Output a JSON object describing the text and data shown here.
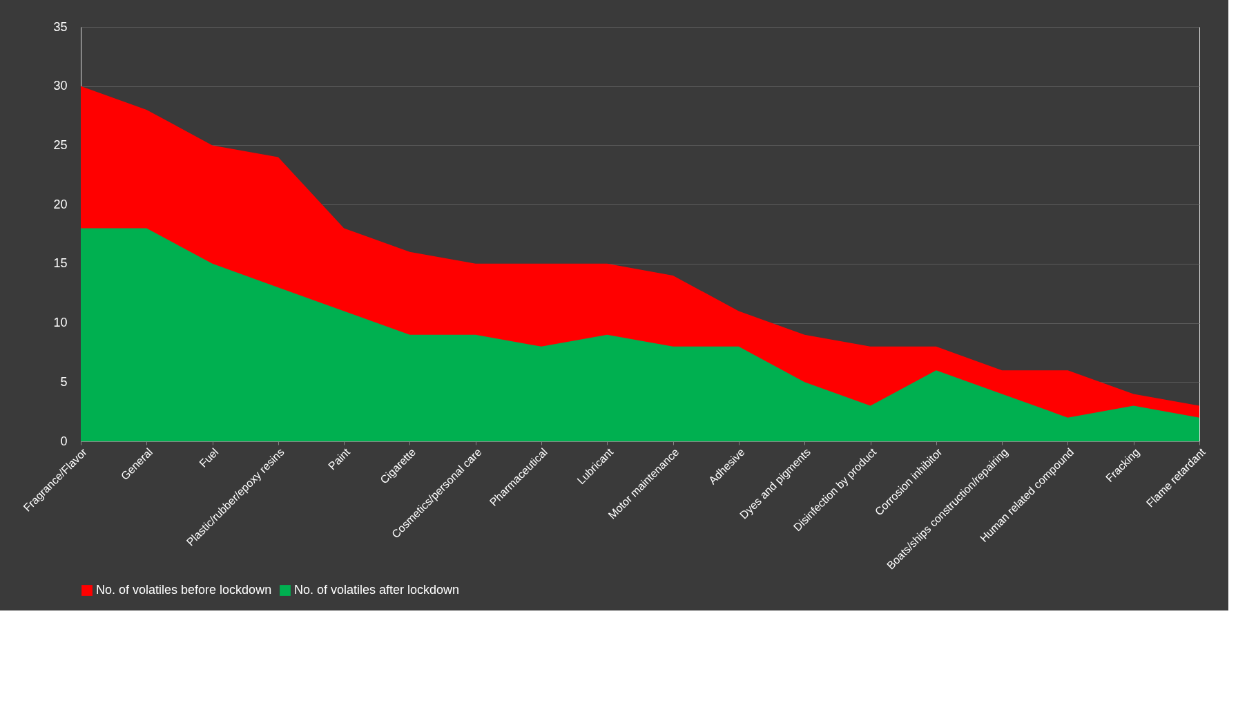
{
  "chart_data": {
    "type": "area",
    "categories": [
      "Fragrance/Flavor",
      "General",
      "Fuel",
      "Plastic/rubber/epoxy resins",
      "Paint",
      "Cigarette",
      "Cosmetics/personal care",
      "Pharmaceutical",
      "Lubricant",
      "Motor maintenance",
      "Adhesive",
      "Dyes and pigments",
      "Disinfection by product",
      "Corrosion inhibitor",
      "Boats/ships construction/repairing",
      "Human related compound",
      "Fracking",
      "Flame retardant"
    ],
    "series": [
      {
        "name": "No. of volatiles before lockdown",
        "color": "#ff0000",
        "values": [
          30,
          28,
          25,
          24,
          18,
          16,
          15,
          15,
          15,
          14,
          11,
          9,
          8,
          8,
          6,
          6,
          4,
          3
        ]
      },
      {
        "name": "No. of volatiles after lockdown",
        "color": "#00b050",
        "values": [
          18,
          18,
          15,
          13,
          11,
          9,
          9,
          8,
          9,
          8,
          8,
          5,
          3,
          6,
          4,
          2,
          3,
          2
        ]
      }
    ],
    "ylim": [
      0,
      35
    ],
    "yticks": [
      0,
      5,
      10,
      15,
      20,
      25,
      30,
      35
    ],
    "grid": "y",
    "legend": "bottom"
  }
}
